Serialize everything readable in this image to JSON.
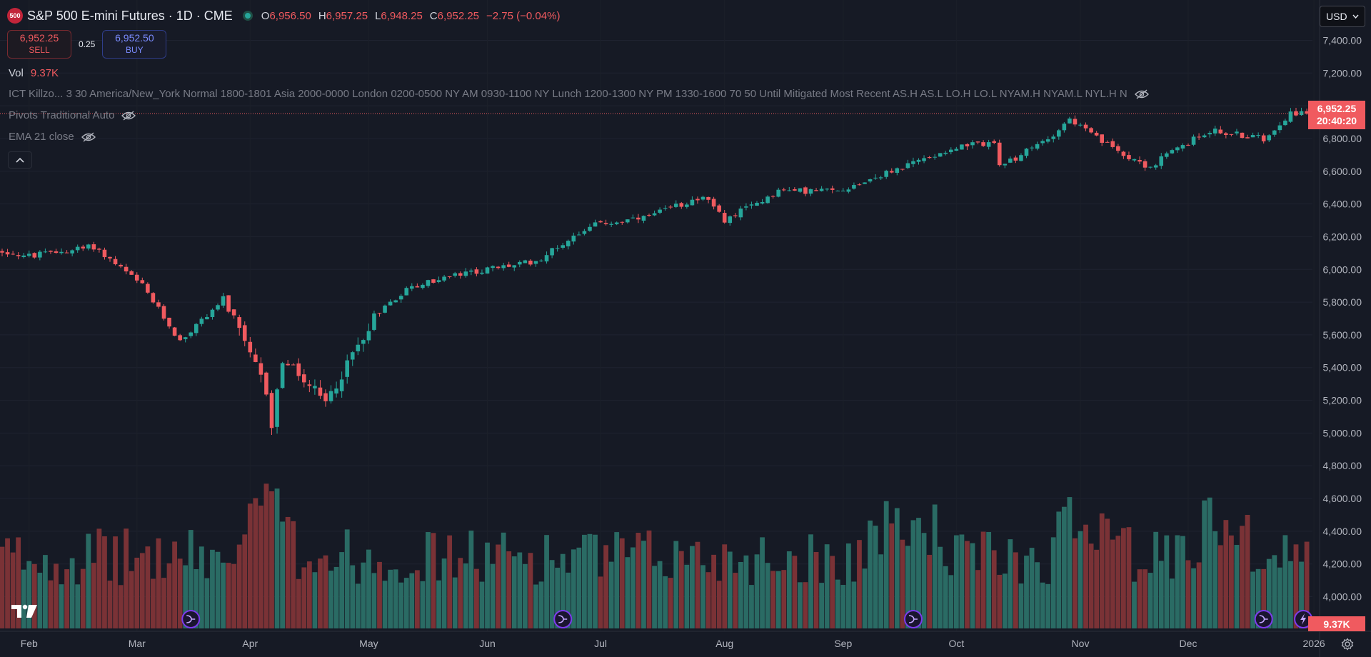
{
  "header": {
    "symbol_badge": "500",
    "title": "S&P 500 E-mini Futures · 1D · CME",
    "open_key": "O",
    "open": "6,956.50",
    "high_key": "H",
    "high": "6,957.25",
    "low_key": "L",
    "low": "6,948.25",
    "close_key": "C",
    "close": "6,952.25",
    "change": "−2.75 (−0.04%)"
  },
  "trade": {
    "sell_price": "6,952.25",
    "sell_label": "SELL",
    "spread": "0.25",
    "buy_price": "6,952.50",
    "buy_label": "BUY"
  },
  "indicators": {
    "vol_label": "Vol",
    "vol_value": "9.37K",
    "ict": "ICT Killzo...  3 30 America/New_York Normal 1800-1801 Asia 2000-0000 London 0200-0500 NY AM 0930-1100 NY Lunch 1200-1300 NY PM 1330-1600 70 50 Until Mitigated Most Recent AS.H AS.L LO.H LO.L NYAM.H NYAM.L NYL.H N",
    "pivots": "Pivots Traditional Auto",
    "ema": "EMA 21 close"
  },
  "toolbar": {
    "currency": "USD",
    "collapse_icon": "chevron-up-icon",
    "settings_icon": "settings-icon"
  },
  "last_price": {
    "price": "6,952.25",
    "countdown": "20:40:20",
    "volume": "9.37K"
  },
  "colors": {
    "up": "#26a69a",
    "down": "#f05a5f",
    "up_vol": "#2a6b64",
    "down_vol": "#7a3236",
    "event": "#7c3aed"
  },
  "chart_data": {
    "type": "candlestick",
    "y_axis_ticks": [
      "7,400.00",
      "7,200.00",
      "7,000.00",
      "6,800.00",
      "6,600.00",
      "6,400.00",
      "6,200.00",
      "6,000.00",
      "5,800.00",
      "5,600.00",
      "5,400.00",
      "5,200.00",
      "5,000.00",
      "4,800.00",
      "4,600.00",
      "4,400.00",
      "4,200.00",
      "4,000.00"
    ],
    "x_axis_labels": [
      "Feb",
      "Mar",
      "Apr",
      "May",
      "Jun",
      "Jul",
      "Aug",
      "Sep",
      "Oct",
      "Nov",
      "Dec",
      "2026"
    ],
    "ylim": [
      3950,
      7450
    ],
    "last_close": 6952.25,
    "events_at": [
      "Mar 17",
      "Jun 20",
      "Sep 19",
      "Dec 19",
      "Dec 31"
    ],
    "price_path": [
      [
        "Jan 27",
        6110
      ],
      [
        "Feb 3",
        6080
      ],
      [
        "Feb 19",
        6140
      ],
      [
        "Mar 4",
        5900
      ],
      [
        "Mar 13",
        5560
      ],
      [
        "Mar 25",
        5820
      ],
      [
        "Apr 4",
        5260
      ],
      [
        "Apr 7",
        5050
      ],
      [
        "Apr 9",
        5450
      ],
      [
        "Apr 21",
        5180
      ],
      [
        "May 2",
        5720
      ],
      [
        "May 12",
        5880
      ],
      [
        "May 21",
        5950
      ],
      [
        "Jun 2",
        6000
      ],
      [
        "Jun 13",
        6050
      ],
      [
        "Jun 27",
        6270
      ],
      [
        "Jul 11",
        6310
      ],
      [
        "Jul 28",
        6450
      ],
      [
        "Aug 1",
        6300
      ],
      [
        "Aug 15",
        6480
      ],
      [
        "Sep 1",
        6480
      ],
      [
        "Sep 15",
        6600
      ],
      [
        "Sep 30",
        6740
      ],
      [
        "Oct 10",
        6780
      ],
      [
        "Oct 13",
        6620
      ],
      [
        "Oct 24",
        6800
      ],
      [
        "Oct 30",
        6920
      ],
      [
        "Nov 7",
        6780
      ],
      [
        "Nov 20",
        6620
      ],
      [
        "Nov 25",
        6700
      ],
      [
        "Dec 5",
        6850
      ],
      [
        "Dec 19",
        6800
      ],
      [
        "Dec 26",
        6960
      ],
      [
        "Dec 31",
        6952
      ]
    ]
  }
}
